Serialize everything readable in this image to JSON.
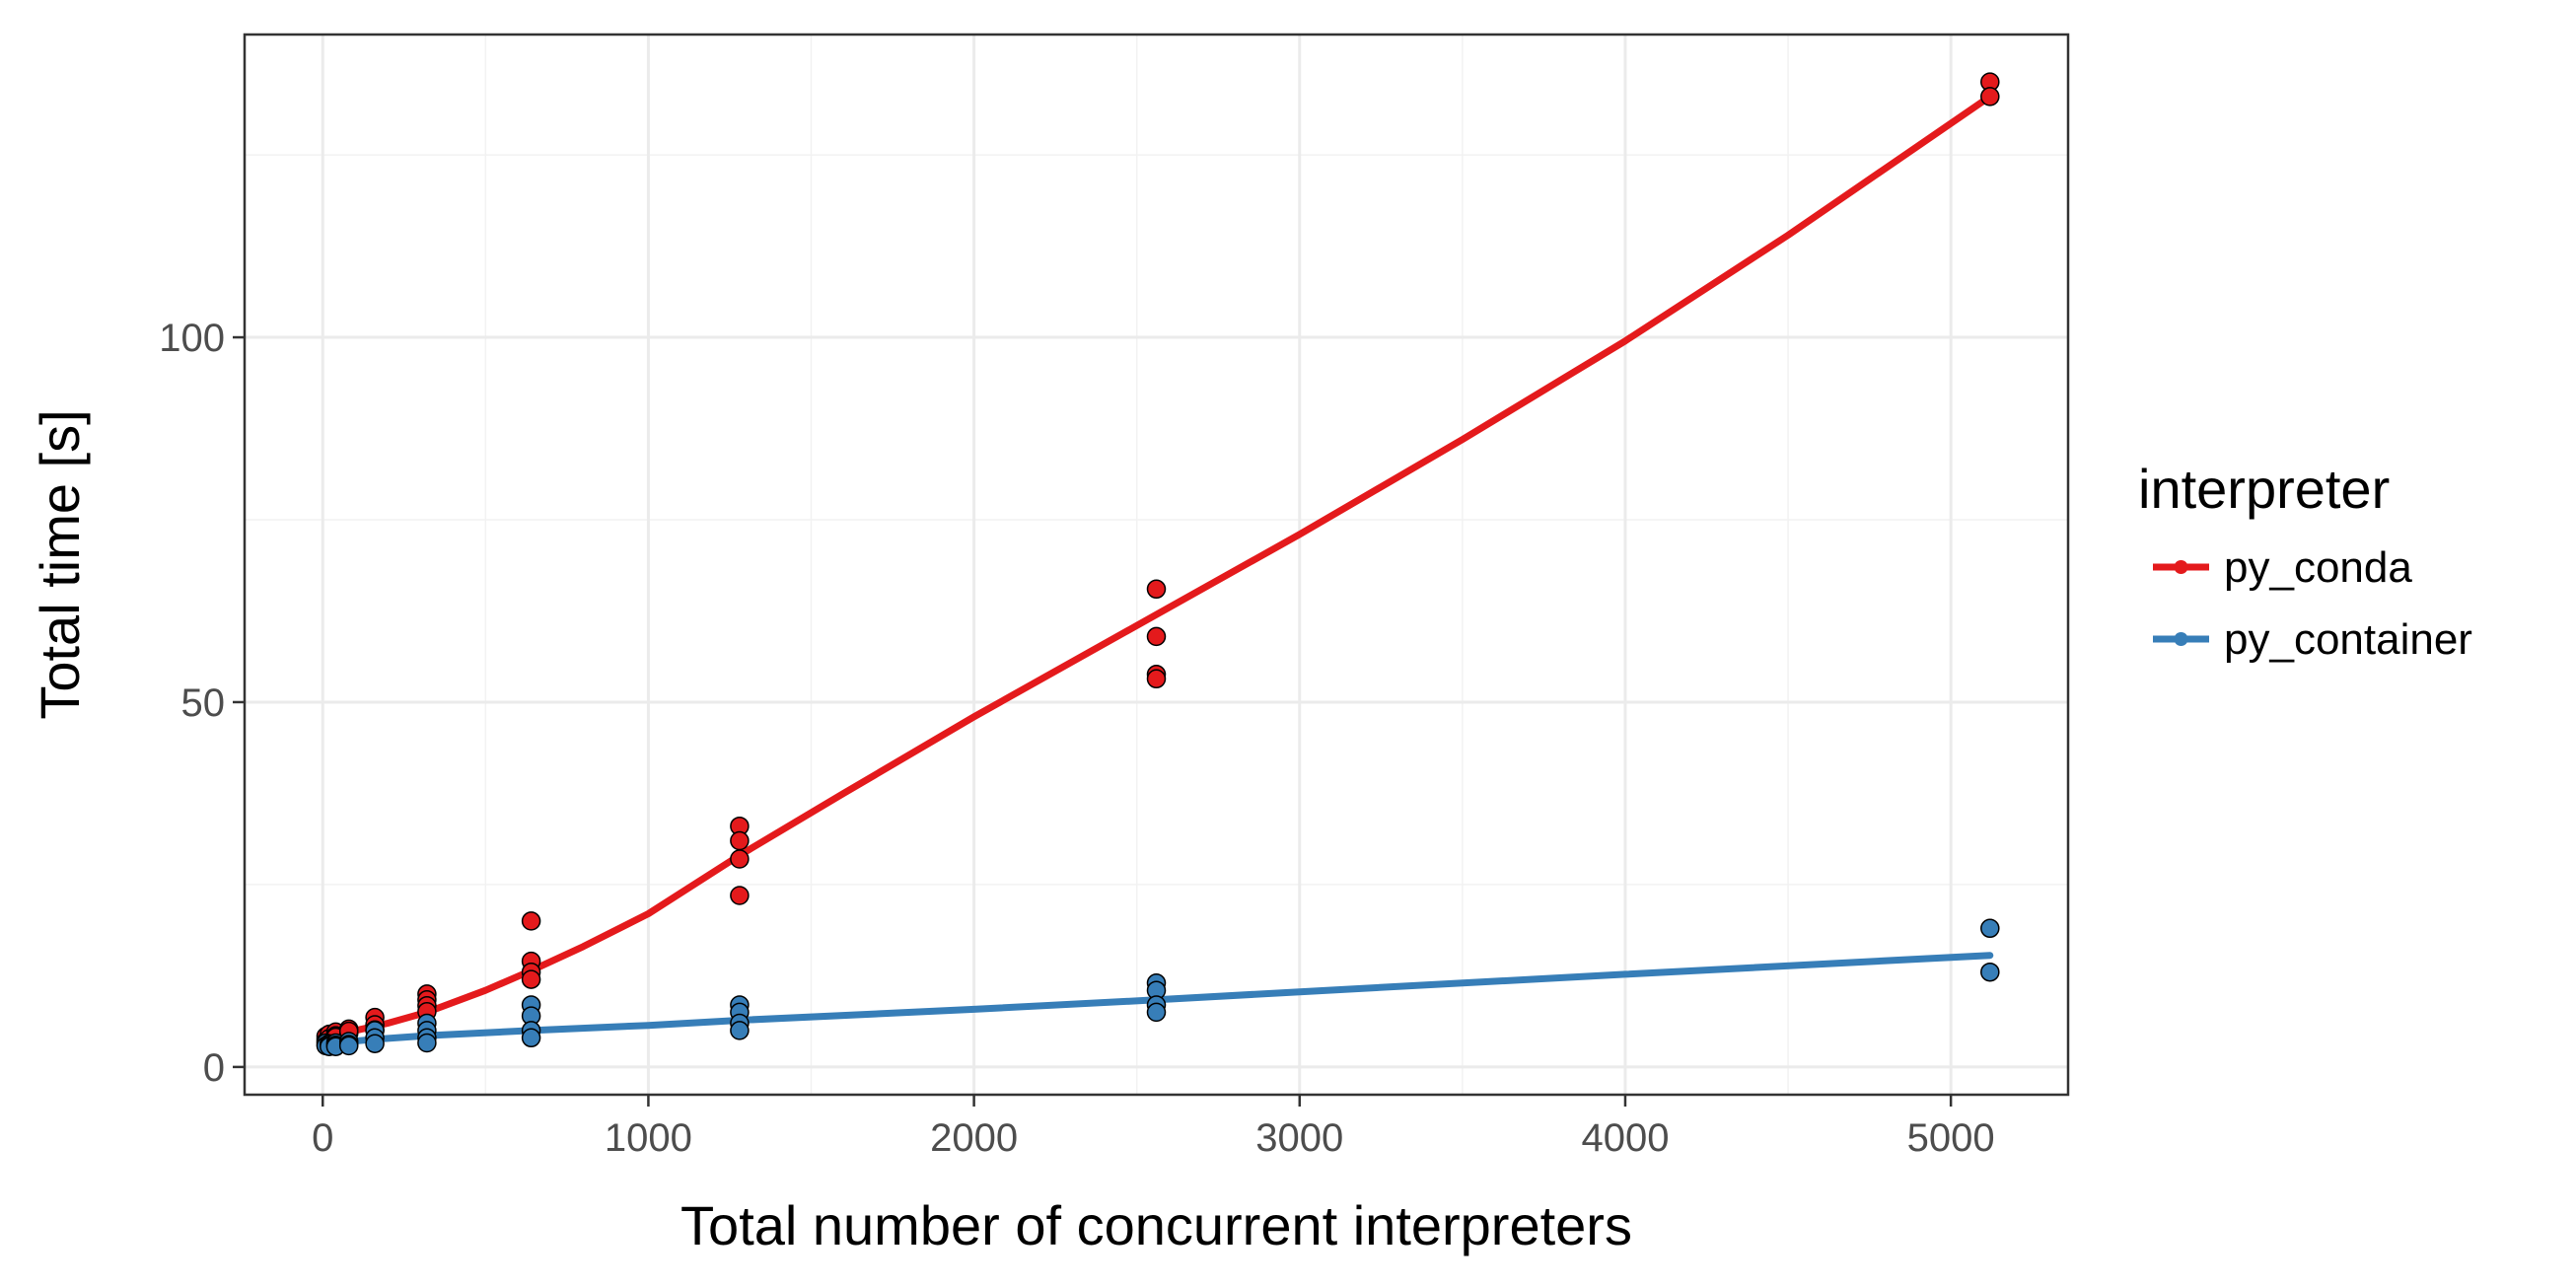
{
  "chart_data": {
    "type": "scatter",
    "title": "",
    "xlabel": "Total number of concurrent interpreters",
    "ylabel": "Total time [s]",
    "xlim": [
      -240,
      5360
    ],
    "ylim": [
      -3.8,
      141.5
    ],
    "x_ticks": [
      0,
      1000,
      2000,
      3000,
      4000,
      5000
    ],
    "y_ticks": [
      0,
      50,
      100
    ],
    "x_tick_labels": [
      "0",
      "1000",
      "2000",
      "3000",
      "4000",
      "5000"
    ],
    "y_tick_labels": [
      "0",
      "50",
      "100"
    ],
    "grid": true,
    "legend": {
      "title": "interpreter",
      "placement": "right"
    },
    "series": [
      {
        "name": "py_conda",
        "color": "#e41a1c",
        "points": [
          [
            10,
            3.8
          ],
          [
            10,
            4.2
          ],
          [
            10,
            3.5
          ],
          [
            20,
            4.0
          ],
          [
            20,
            4.5
          ],
          [
            20,
            3.9
          ],
          [
            40,
            4.8
          ],
          [
            40,
            4.3
          ],
          [
            40,
            4.1
          ],
          [
            80,
            5.2
          ],
          [
            80,
            4.6
          ],
          [
            80,
            4.9
          ],
          [
            160,
            6.8
          ],
          [
            160,
            5.8
          ],
          [
            160,
            5.1
          ],
          [
            320,
            10.0
          ],
          [
            320,
            9.2
          ],
          [
            320,
            8.4
          ],
          [
            320,
            7.6
          ],
          [
            640,
            20.0
          ],
          [
            640,
            14.5
          ],
          [
            640,
            13.0
          ],
          [
            640,
            12.0
          ],
          [
            1280,
            33.0
          ],
          [
            1280,
            31.0
          ],
          [
            1280,
            28.5
          ],
          [
            1280,
            23.5
          ],
          [
            2560,
            65.5
          ],
          [
            2560,
            59.0
          ],
          [
            2560,
            53.8
          ],
          [
            2560,
            53.2
          ],
          [
            5120,
            135.0
          ],
          [
            5120,
            133.0
          ]
        ],
        "fit": [
          [
            10,
            4.2
          ],
          [
            100,
            5.0
          ],
          [
            200,
            6.0
          ],
          [
            320,
            7.5
          ],
          [
            500,
            10.5
          ],
          [
            640,
            13.2
          ],
          [
            800,
            16.5
          ],
          [
            1000,
            21.0
          ],
          [
            1280,
            29.0
          ],
          [
            1600,
            37.5
          ],
          [
            2000,
            48.0
          ],
          [
            2560,
            62.0
          ],
          [
            3000,
            73.0
          ],
          [
            3500,
            86.0
          ],
          [
            4000,
            99.5
          ],
          [
            4500,
            114.0
          ],
          [
            5120,
            133.0
          ]
        ]
      },
      {
        "name": "py_container",
        "color": "#377eb8",
        "points": [
          [
            10,
            3.0
          ],
          [
            10,
            3.3
          ],
          [
            10,
            2.9
          ],
          [
            20,
            3.2
          ],
          [
            20,
            3.0
          ],
          [
            20,
            2.8
          ],
          [
            40,
            3.3
          ],
          [
            40,
            3.0
          ],
          [
            40,
            2.8
          ],
          [
            80,
            3.5
          ],
          [
            80,
            3.1
          ],
          [
            80,
            2.9
          ],
          [
            160,
            5.0
          ],
          [
            160,
            4.0
          ],
          [
            160,
            3.2
          ],
          [
            320,
            6.0
          ],
          [
            320,
            5.0
          ],
          [
            320,
            4.0
          ],
          [
            320,
            3.3
          ],
          [
            640,
            8.5
          ],
          [
            640,
            7.0
          ],
          [
            640,
            5.0
          ],
          [
            640,
            4.0
          ],
          [
            1280,
            8.5
          ],
          [
            1280,
            7.5
          ],
          [
            1280,
            6.0
          ],
          [
            1280,
            5.0
          ],
          [
            2560,
            11.5
          ],
          [
            2560,
            10.5
          ],
          [
            2560,
            8.5
          ],
          [
            2560,
            7.5
          ],
          [
            5120,
            19.0
          ],
          [
            5120,
            13.0
          ]
        ],
        "fit": [
          [
            10,
            3.2
          ],
          [
            160,
            3.8
          ],
          [
            320,
            4.3
          ],
          [
            640,
            5.0
          ],
          [
            1000,
            5.7
          ],
          [
            1280,
            6.4
          ],
          [
            2000,
            7.9
          ],
          [
            2560,
            9.2
          ],
          [
            3000,
            10.3
          ],
          [
            4000,
            12.7
          ],
          [
            5120,
            15.3
          ]
        ]
      }
    ]
  }
}
